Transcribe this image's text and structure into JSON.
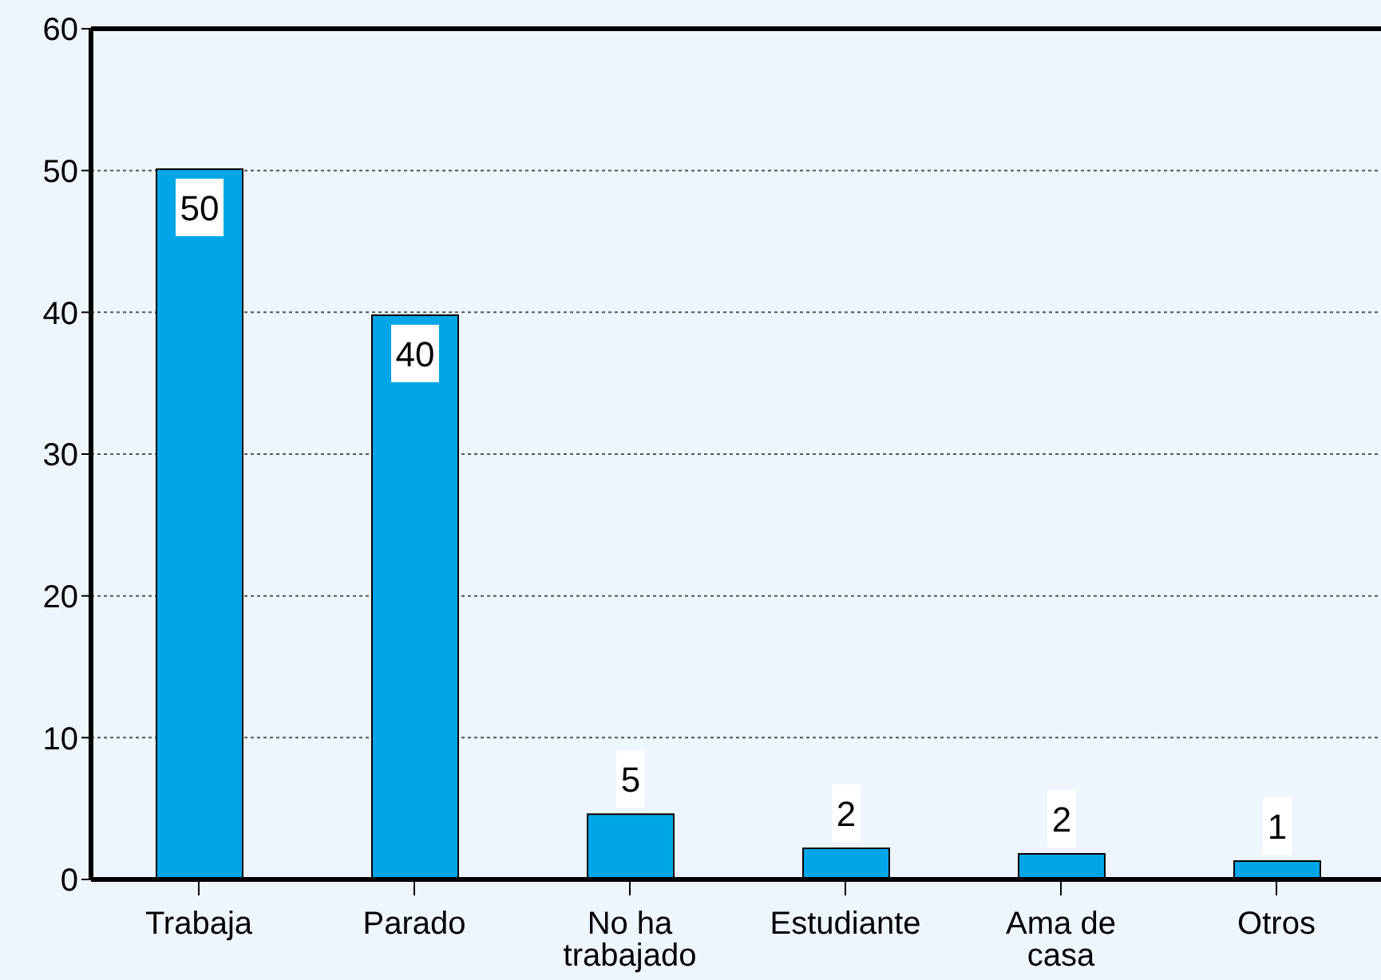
{
  "chart_data": {
    "type": "bar",
    "categories": [
      "Trabaja",
      "Parado",
      "No ha trabajado",
      "Estudiante",
      "Ama de casa",
      "Otros"
    ],
    "values": [
      50.1,
      39.8,
      4.6,
      2.2,
      1.8,
      1.3
    ],
    "value_labels": [
      "50",
      "40",
      "5",
      "2",
      "2",
      "1"
    ],
    "color": "#00a6e8",
    "ylim": [
      0,
      60
    ],
    "yticks": [
      0,
      10,
      20,
      30,
      40,
      50,
      60
    ],
    "grid": "y"
  }
}
